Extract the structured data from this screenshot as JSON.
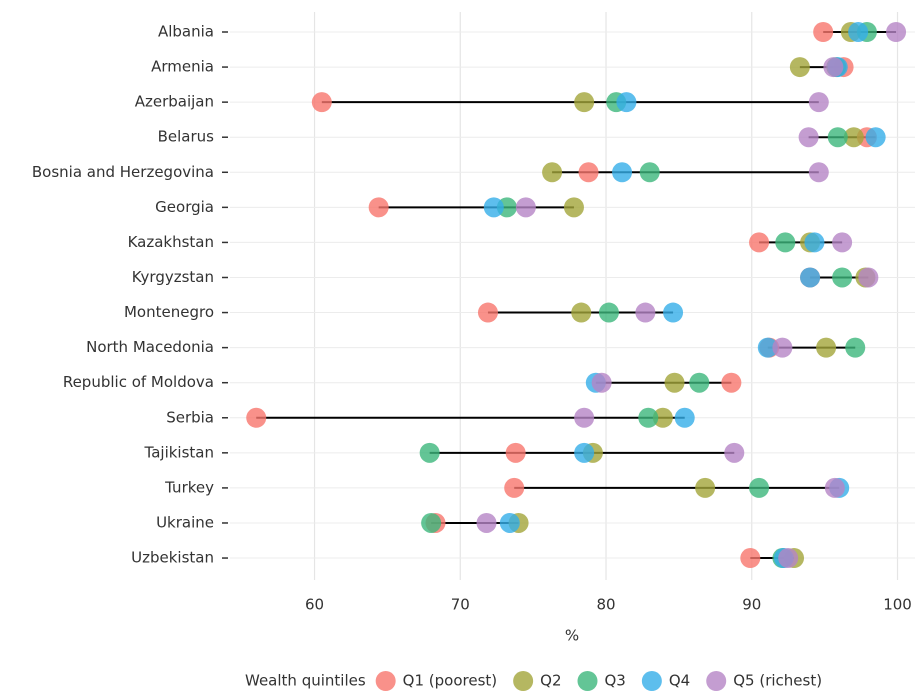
{
  "chart_data": {
    "type": "dot",
    "categories": [
      "Albania",
      "Armenia",
      "Azerbaijan",
      "Belarus",
      "Bosnia and Herzegovina",
      "Georgia",
      "Kazakhstan",
      "Kyrgyzstan",
      "Montenegro",
      "North Macedonia",
      "Republic of Moldova",
      "Serbia",
      "Tajikistan",
      "Turkey",
      "Ukraine",
      "Uzbekistan"
    ],
    "series": [
      {
        "name": "Q1 (poorest)",
        "color": "#f8766d",
        "values": [
          94.9,
          96.3,
          60.5,
          97.9,
          78.8,
          64.4,
          90.5,
          94.0,
          71.9,
          91.2,
          88.6,
          56.0,
          73.8,
          73.7,
          68.3,
          89.9
        ]
      },
      {
        "name": "Q2",
        "color": "#a3a53a",
        "values": [
          96.8,
          93.3,
          78.5,
          97.0,
          76.3,
          77.8,
          94.0,
          97.8,
          78.3,
          95.1,
          84.7,
          83.9,
          79.1,
          86.8,
          74.0,
          92.9
        ]
      },
      {
        "name": "Q3",
        "color": "#3cb67c",
        "values": [
          97.9,
          95.8,
          80.7,
          95.9,
          83.0,
          73.2,
          92.3,
          96.2,
          80.2,
          97.1,
          86.4,
          82.9,
          67.9,
          90.5,
          68.0,
          92.1
        ]
      },
      {
        "name": "Q4",
        "color": "#35aee8",
        "values": [
          97.3,
          95.9,
          81.4,
          98.5,
          81.1,
          72.3,
          94.3,
          94.0,
          84.6,
          91.1,
          79.3,
          85.4,
          78.5,
          96.0,
          73.4,
          92.2
        ]
      },
      {
        "name": "Q5 (richest)",
        "color": "#b584c6",
        "values": [
          99.9,
          95.6,
          94.6,
          93.9,
          94.6,
          74.5,
          96.2,
          98.0,
          82.7,
          92.1,
          79.7,
          78.5,
          88.8,
          95.7,
          71.8,
          92.5
        ]
      }
    ],
    "xlabel": "%",
    "legend_title": "Wealth quintiles",
    "legend": "bottom",
    "xlim": [
      54.2,
      101.2
    ],
    "xticks": [
      60,
      70,
      80,
      90,
      100
    ],
    "grid": true
  }
}
